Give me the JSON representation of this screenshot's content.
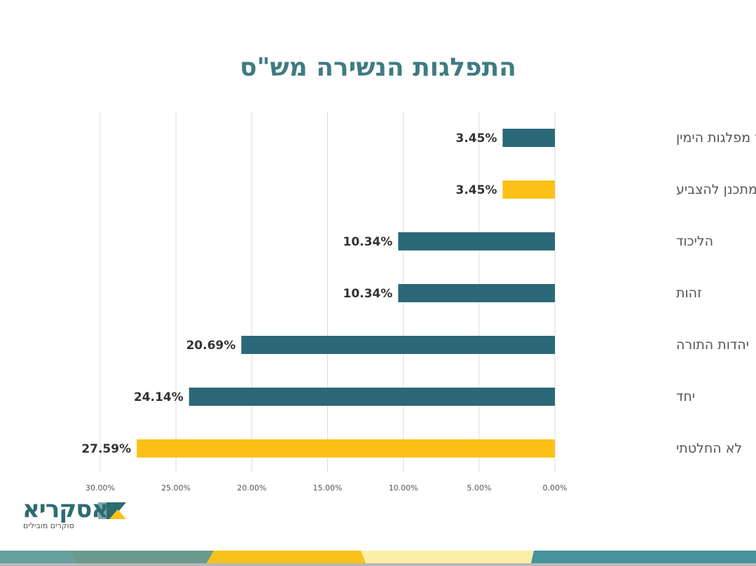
{
  "chart_data": {
    "type": "bar",
    "orientation": "horizontal",
    "title": "התפלגות הנשירה מש\"ס",
    "categories": [
      "איחוד מפלגות הימין",
      "לא מתכנן להצביע",
      "הליכוד",
      "זהות",
      "יהדות התורה",
      "יחד",
      "לא החלטתי"
    ],
    "values": [
      3.45,
      3.45,
      10.34,
      10.34,
      20.69,
      24.14,
      27.59
    ],
    "value_labels": [
      "3.45%",
      "3.45%",
      "10.34%",
      "10.34%",
      "20.69%",
      "24.14%",
      "27.59%"
    ],
    "bar_colors": [
      "#2b6878",
      "#fbc117",
      "#2b6878",
      "#2b6878",
      "#2b6878",
      "#2b6878",
      "#fbc117"
    ],
    "xlim": [
      0,
      30
    ],
    "x_reversed": true,
    "x_ticks": [
      "30.00%",
      "25.00%",
      "20.00%",
      "15.00%",
      "10.00%",
      "5.00%",
      "0.00%"
    ],
    "x_tick_values": [
      30,
      25,
      20,
      15,
      10,
      5,
      0
    ],
    "grid": true,
    "xlabel": "",
    "ylabel": ""
  },
  "logo": {
    "name": "אסקריא",
    "tagline": "סוקרים מובילים"
  },
  "colors": {
    "title": "#3f7b82",
    "teal": "#2b6878",
    "yellow": "#fbc117"
  }
}
